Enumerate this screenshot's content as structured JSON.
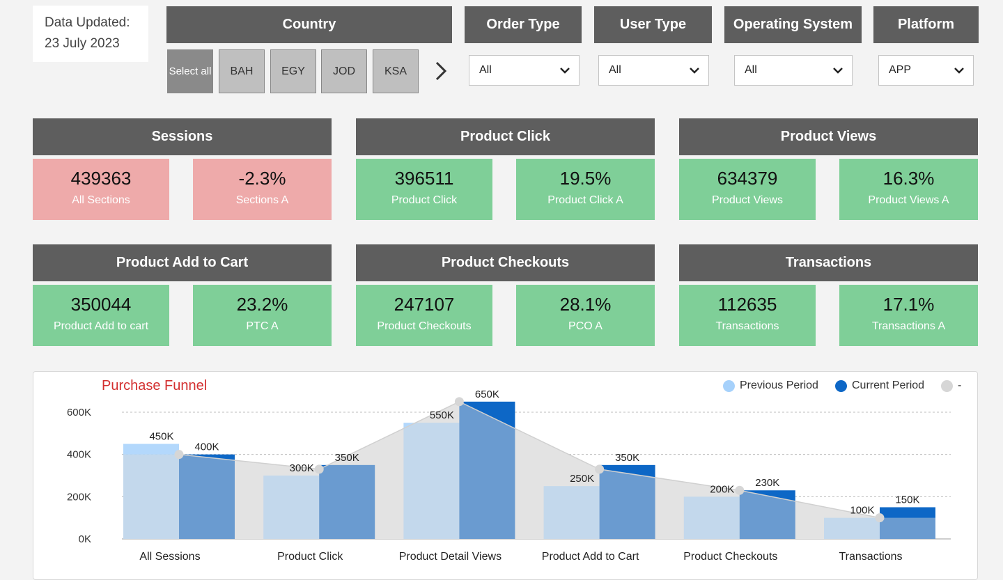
{
  "updated": {
    "line1": "Data Updated:",
    "line2": "23 July 2023"
  },
  "filters": {
    "country": {
      "label": "Country",
      "select_all": "Select all",
      "options": [
        "BAH",
        "EGY",
        "JOD",
        "KSA"
      ]
    },
    "order_type": {
      "label": "Order Type",
      "value": "All"
    },
    "user_type": {
      "label": "User Type",
      "value": "All"
    },
    "operating_system": {
      "label": "Operating System",
      "value": "All"
    },
    "platform": {
      "label": "Platform",
      "value": "APP"
    }
  },
  "kpis": [
    {
      "title": "Sessions",
      "value": "439363",
      "label": "All Sections",
      "change": "-2.3%",
      "change_label": "Sections A",
      "status": "down"
    },
    {
      "title": "Product Click",
      "value": "396511",
      "label": "Product Click",
      "change": "19.5%",
      "change_label": "Product Click A",
      "status": "up"
    },
    {
      "title": "Product Views",
      "value": "634379",
      "label": "Product Views",
      "change": "16.3%",
      "change_label": "Product Views A",
      "status": "up"
    },
    {
      "title": "Product Add to Cart",
      "value": "350044",
      "label": "Product Add to cart",
      "change": "23.2%",
      "change_label": "PTC A",
      "status": "up"
    },
    {
      "title": "Product Checkouts",
      "value": "247107",
      "label": "Product Checkouts",
      "change": "28.1%",
      "change_label": "PCO A",
      "status": "up"
    },
    {
      "title": "Transactions",
      "value": "112635",
      "label": "Transactions",
      "change": "17.1%",
      "change_label": "Transactions A",
      "status": "up"
    }
  ],
  "colors": {
    "header_bg": "#5e5e5e",
    "kpi_up": "#7fcf98",
    "kpi_down": "#eeaaaa",
    "previous_period": "#a6d1fb",
    "current_period": "#0d67c6",
    "third_series": "#d6d6d6",
    "chart_title": "#d32f2f"
  },
  "chart_data": {
    "type": "bar",
    "title": "Purchase Funnel",
    "categories": [
      "All Sessions",
      "Product Click",
      "Product Detail Views",
      "Product Add to Cart",
      "Product Checkouts",
      "Transactions"
    ],
    "series": [
      {
        "name": "Previous Period",
        "values": [
          450000,
          300000,
          550000,
          250000,
          200000,
          100000
        ],
        "labels": [
          "450K",
          "300K",
          "550K",
          "250K",
          "200K",
          "100K"
        ]
      },
      {
        "name": "Current Period",
        "values": [
          400000,
          350000,
          650000,
          350000,
          230000,
          150000
        ],
        "labels": [
          "400K",
          "350K",
          "650K",
          "350K",
          "230K",
          "150K"
        ]
      },
      {
        "name": "-",
        "type": "area",
        "values": [
          400000,
          330000,
          650000,
          330000,
          230000,
          100000
        ]
      }
    ],
    "y_ticks": [
      "600K",
      "400K",
      "200K",
      "0K"
    ],
    "y_tick_values": [
      600000,
      400000,
      200000,
      0
    ],
    "ylim": [
      0,
      600000
    ],
    "grid": true,
    "legend_position": "top-right"
  }
}
